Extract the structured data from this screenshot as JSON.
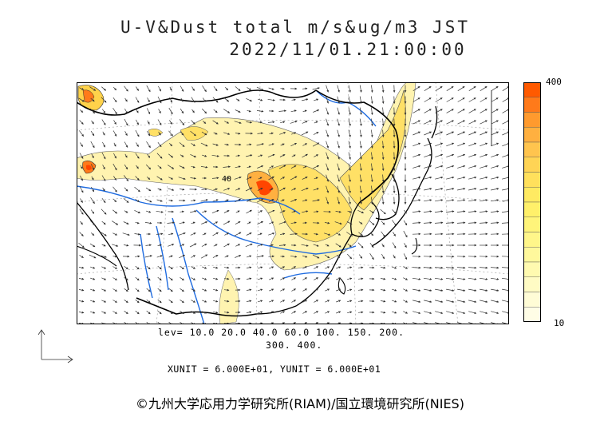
{
  "title": {
    "line1": "U-V&Dust total m/s&ug/m3 JST",
    "line2": "2022/11/01.21:00:00"
  },
  "colorbar": {
    "max_label": "400",
    "min_label": "10",
    "colors": [
      "#ff5a00",
      "#ff7a1a",
      "#ff9a2e",
      "#ffb040",
      "#ffc44e",
      "#ffd455",
      "#ffe05c",
      "#ffea62",
      "#fff06a",
      "#fff47a",
      "#fff68a",
      "#fff89c",
      "#fffab0",
      "#fffbc4",
      "#fffcd6",
      "#fffde6"
    ]
  },
  "levels": {
    "line1": "lev= 10.0 20.0 40.0 60.0 100. 150. 200.",
    "line2": "300. 400."
  },
  "units": "XUNIT = 6.000E+01, YUNIT = 6.000E+01",
  "copyright": "©九州大学応用力学研究所(RIAM)/国立環境研究所(NIES)",
  "map": {
    "contour_label": "40",
    "colors": {
      "land_low": "#fff3b0",
      "dust_mid": "#ffe066",
      "dust_high": "#ff8c1a",
      "dust_peak": "#ff4500",
      "river": "#1e6be0",
      "border": "#000000"
    }
  }
}
